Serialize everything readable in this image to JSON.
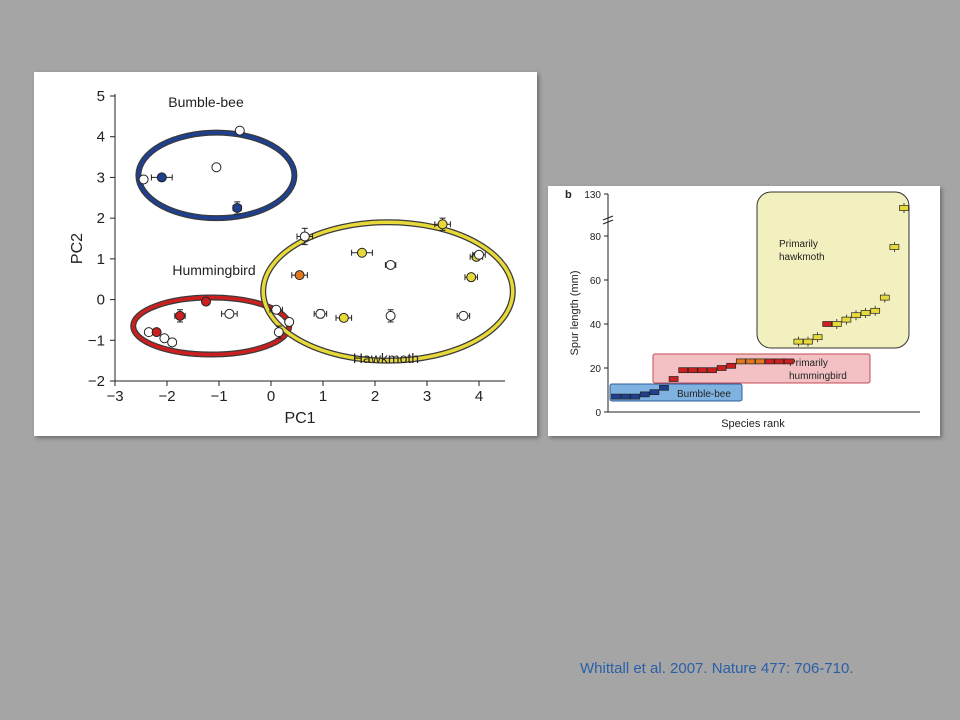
{
  "citation": "Whittall et al. 2007. Nature 477: 706-710.",
  "colors": {
    "bumblebee": "#1f3f8f",
    "hummingbird": "#cc1f1f",
    "hawkmoth": "#e8d93a",
    "orange": "#e07820"
  },
  "chart_data": [
    {
      "type": "scatter",
      "xlabel": "PC1",
      "ylabel": "PC2",
      "xlim": [
        -3,
        4.5
      ],
      "ylim": [
        -2,
        5
      ],
      "xticks": [
        "−3",
        "−2",
        "−1",
        "0",
        "1",
        "2",
        "3",
        "4"
      ],
      "yticks": [
        "−2",
        "−1",
        "0",
        "1",
        "2",
        "3",
        "4",
        "5"
      ],
      "groups": [
        {
          "name": "Bumble-bee",
          "color": "#1f3f8f",
          "center": [
            -1.05,
            3.05
          ],
          "radius": [
            1.5,
            1.05
          ]
        },
        {
          "name": "Hummingbird",
          "color": "#cc1f1f",
          "center": [
            -1.15,
            -0.65
          ],
          "radius": [
            1.5,
            0.7
          ]
        },
        {
          "name": "Hawkmoth",
          "color": "#e8d93a",
          "center": [
            2.25,
            0.2
          ],
          "radius": [
            2.4,
            1.7
          ]
        }
      ],
      "points": [
        {
          "x": -2.45,
          "y": 2.95,
          "fill": "white",
          "xerr": 0,
          "yerr": 0
        },
        {
          "x": -2.1,
          "y": 3.0,
          "fill": "blue",
          "xerr": 0.2,
          "yerr": 0.08
        },
        {
          "x": -1.05,
          "y": 3.25,
          "fill": "white",
          "xerr": 0,
          "yerr": 0
        },
        {
          "x": -0.6,
          "y": 4.15,
          "fill": "white",
          "xerr": 0,
          "yerr": 0
        },
        {
          "x": -0.65,
          "y": 2.25,
          "fill": "blue",
          "xerr": 0.08,
          "yerr": 0.15
        },
        {
          "x": -2.35,
          "y": -0.8,
          "fill": "white",
          "xerr": 0,
          "yerr": 0
        },
        {
          "x": -2.05,
          "y": -0.95,
          "fill": "white",
          "xerr": 0,
          "yerr": 0
        },
        {
          "x": -2.2,
          "y": -0.8,
          "fill": "red",
          "xerr": 0,
          "yerr": 0
        },
        {
          "x": -1.9,
          "y": -1.05,
          "fill": "white",
          "xerr": 0,
          "yerr": 0
        },
        {
          "x": -1.75,
          "y": -0.4,
          "fill": "red",
          "xerr": 0.1,
          "yerr": 0.15
        },
        {
          "x": -1.25,
          "y": -0.05,
          "fill": "red",
          "xerr": 0,
          "yerr": 0
        },
        {
          "x": -0.8,
          "y": -0.35,
          "fill": "white",
          "xerr": 0.15,
          "yerr": 0
        },
        {
          "x": 0.1,
          "y": -0.25,
          "fill": "white",
          "xerr": 0.12,
          "yerr": 0
        },
        {
          "x": 0.35,
          "y": -0.55,
          "fill": "white",
          "xerr": 0,
          "yerr": 0
        },
        {
          "x": 0.15,
          "y": -0.8,
          "fill": "white",
          "xerr": 0,
          "yerr": 0.15
        },
        {
          "x": 0.55,
          "y": 0.6,
          "fill": "orange",
          "xerr": 0.15,
          "yerr": 0
        },
        {
          "x": 0.65,
          "y": 1.55,
          "fill": "white",
          "xerr": 0.15,
          "yerr": 0.2
        },
        {
          "x": 0.95,
          "y": -0.35,
          "fill": "white",
          "xerr": 0.12,
          "yerr": 0.1
        },
        {
          "x": 1.4,
          "y": -0.45,
          "fill": "yellow",
          "xerr": 0.15,
          "yerr": 0
        },
        {
          "x": 1.75,
          "y": 1.15,
          "fill": "yellow",
          "xerr": 0.2,
          "yerr": 0
        },
        {
          "x": 2.3,
          "y": 0.85,
          "fill": "white",
          "xerr": 0.1,
          "yerr": 0
        },
        {
          "x": 2.3,
          "y": -0.4,
          "fill": "white",
          "xerr": 0,
          "yerr": 0.15
        },
        {
          "x": 3.3,
          "y": 1.85,
          "fill": "yellow",
          "xerr": 0.15,
          "yerr": 0.15
        },
        {
          "x": 3.7,
          "y": -0.4,
          "fill": "white",
          "xerr": 0.12,
          "yerr": 0
        },
        {
          "x": 3.85,
          "y": 0.55,
          "fill": "yellow",
          "xerr": 0.12,
          "yerr": 0
        },
        {
          "x": 3.95,
          "y": 1.05,
          "fill": "yellow",
          "xerr": 0.12,
          "yerr": 0
        },
        {
          "x": 4.0,
          "y": 1.1,
          "fill": "white",
          "xerr": 0.12,
          "yerr": 0
        }
      ]
    },
    {
      "type": "scatter",
      "panel_label": "b",
      "xlabel": "Species rank",
      "ylabel": "Spur length (mm)",
      "yticks": [
        "0",
        "20",
        "40",
        "60",
        "80",
        "130"
      ],
      "axis_break": "between 80 and 130",
      "groups": [
        {
          "name": "Bumble-bee",
          "color": "#7fb2e0"
        },
        {
          "name": "Primarily hummingbird",
          "color": "#f3c1c4"
        },
        {
          "name": "Primarily hawkmoth",
          "color": "#f3f0bf"
        }
      ],
      "points": [
        {
          "x": 1,
          "y": 7,
          "fill": "blue"
        },
        {
          "x": 2,
          "y": 7,
          "fill": "blue"
        },
        {
          "x": 3,
          "y": 7,
          "fill": "blue"
        },
        {
          "x": 4,
          "y": 8,
          "fill": "blue"
        },
        {
          "x": 5,
          "y": 9,
          "fill": "blue"
        },
        {
          "x": 6,
          "y": 11,
          "fill": "blue"
        },
        {
          "x": 7,
          "y": 15,
          "fill": "red"
        },
        {
          "x": 8,
          "y": 19,
          "fill": "red"
        },
        {
          "x": 9,
          "y": 19,
          "fill": "red"
        },
        {
          "x": 10,
          "y": 19,
          "fill": "red"
        },
        {
          "x": 11,
          "y": 19,
          "fill": "red"
        },
        {
          "x": 12,
          "y": 20,
          "fill": "red"
        },
        {
          "x": 13,
          "y": 21,
          "fill": "red"
        },
        {
          "x": 14,
          "y": 23,
          "fill": "orange"
        },
        {
          "x": 15,
          "y": 23,
          "fill": "orange"
        },
        {
          "x": 16,
          "y": 23,
          "fill": "orange"
        },
        {
          "x": 17,
          "y": 23,
          "fill": "red"
        },
        {
          "x": 18,
          "y": 23,
          "fill": "red"
        },
        {
          "x": 19,
          "y": 23,
          "fill": "red"
        },
        {
          "x": 20,
          "y": 32,
          "fill": "yellow"
        },
        {
          "x": 21,
          "y": 32,
          "fill": "yellow"
        },
        {
          "x": 22,
          "y": 34,
          "fill": "yellow"
        },
        {
          "x": 23,
          "y": 40,
          "fill": "red"
        },
        {
          "x": 24,
          "y": 40,
          "fill": "yellow"
        },
        {
          "x": 25,
          "y": 42,
          "fill": "yellow"
        },
        {
          "x": 26,
          "y": 44,
          "fill": "yellow"
        },
        {
          "x": 27,
          "y": 45,
          "fill": "yellow"
        },
        {
          "x": 28,
          "y": 46,
          "fill": "yellow"
        },
        {
          "x": 29,
          "y": 52,
          "fill": "yellow"
        },
        {
          "x": 30,
          "y": 75,
          "fill": "yellow"
        },
        {
          "x": 31,
          "y": 130,
          "fill": "yellow"
        }
      ]
    }
  ]
}
